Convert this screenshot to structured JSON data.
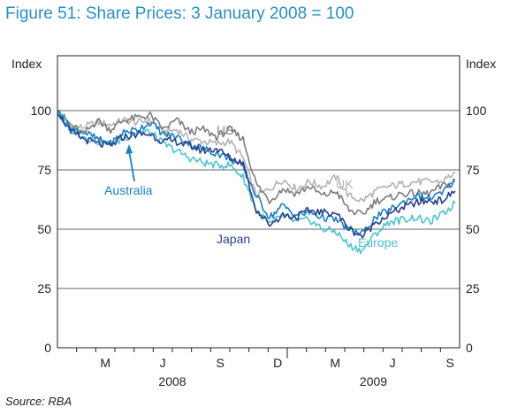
{
  "title": "Figure 51: Share Prices: 3 January 2008 = 100",
  "source": "Source: RBA",
  "chart_data": {
    "type": "line",
    "y_unit_left": "Index",
    "y_unit_right": "Index",
    "ylim": [
      0,
      100
    ],
    "y_ticks": [
      "0",
      "25",
      "50",
      "75",
      "100"
    ],
    "x_ticks": [
      "M",
      "J",
      "S",
      "D",
      "M",
      "J",
      "S"
    ],
    "x_year_labels": [
      "2008",
      "2009"
    ],
    "grid": true,
    "series": [
      {
        "name": "US",
        "color": "#7d7d7d",
        "values": [
          100,
          94,
          90,
          96,
          92,
          96,
          97,
          98,
          92,
          96,
          91,
          92,
          89,
          92,
          88,
          69,
          62,
          67,
          65,
          68,
          64,
          66,
          58,
          56,
          62,
          63,
          65,
          65,
          65,
          68,
          70
        ]
      },
      {
        "name": "UK",
        "color": "#b3b3b3",
        "values": [
          100,
          93,
          93,
          95,
          94,
          96,
          95,
          96,
          91,
          92,
          88,
          87,
          86,
          87,
          80,
          64,
          67,
          71,
          67,
          70,
          68,
          72,
          64,
          62,
          66,
          68,
          69,
          70,
          70,
          70,
          74
        ]
      },
      {
        "name": "Australia",
        "color": "#1a7fbf",
        "values": [
          100,
          92,
          91,
          88,
          86,
          91,
          92,
          95,
          90,
          89,
          86,
          84,
          82,
          80,
          76,
          64,
          55,
          60,
          56,
          57,
          55,
          54,
          50,
          48,
          55,
          58,
          61,
          64,
          63,
          65,
          71
        ]
      },
      {
        "name": "Japan",
        "color": "#2b3f8c",
        "values": [
          100,
          91,
          88,
          86,
          85,
          89,
          90,
          90,
          87,
          87,
          85,
          83,
          84,
          80,
          78,
          58,
          52,
          56,
          55,
          58,
          57,
          57,
          50,
          47,
          53,
          56,
          59,
          61,
          62,
          62,
          66
        ]
      },
      {
        "name": "Europe",
        "color": "#4cc3d0",
        "values": [
          100,
          92,
          89,
          87,
          86,
          88,
          91,
          91,
          86,
          83,
          80,
          78,
          77,
          77,
          72,
          58,
          52,
          56,
          53,
          54,
          50,
          49,
          43,
          41,
          48,
          53,
          54,
          55,
          53,
          56,
          61
        ]
      }
    ]
  }
}
